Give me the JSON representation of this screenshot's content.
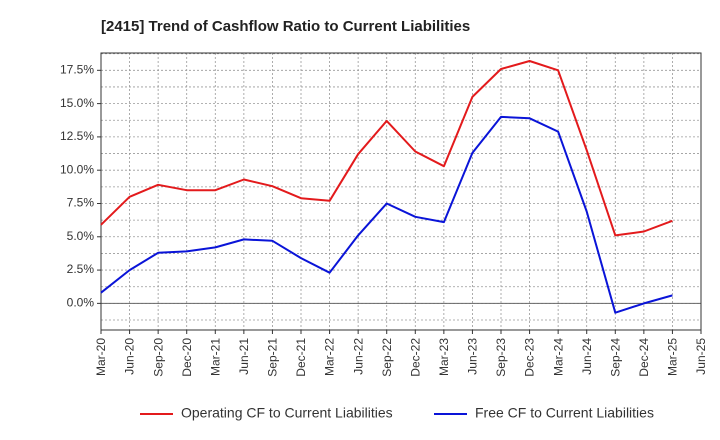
{
  "chart_data": {
    "type": "line",
    "title": "[2415]  Trend of Cashflow Ratio to Current Liabilities",
    "xlabel": "",
    "ylabel": "",
    "categories": [
      "Mar-20",
      "Jun-20",
      "Sep-20",
      "Dec-20",
      "Mar-21",
      "Jun-21",
      "Sep-21",
      "Dec-21",
      "Mar-22",
      "Jun-22",
      "Sep-22",
      "Dec-22",
      "Mar-23",
      "Jun-23",
      "Sep-23",
      "Dec-23",
      "Mar-24",
      "Jun-24",
      "Sep-24",
      "Dec-24",
      "Mar-25",
      "Jun-25"
    ],
    "y_ticks": [
      "0.0%",
      "2.5%",
      "5.0%",
      "7.5%",
      "10.0%",
      "12.5%",
      "15.0%",
      "17.5%"
    ],
    "ylim": [
      -2.0,
      18.8
    ],
    "grid": true,
    "legend_position": "bottom",
    "series": [
      {
        "name": "Operating CF to Current Liabilities",
        "color": "#e31a1c",
        "values": [
          5.9,
          8.0,
          8.9,
          8.5,
          8.5,
          9.3,
          8.8,
          7.9,
          7.7,
          11.2,
          13.7,
          11.4,
          10.3,
          15.5,
          17.6,
          18.2,
          17.5,
          11.5,
          5.1,
          5.4,
          6.2,
          null
        ]
      },
      {
        "name": "Free CF to Current Liabilities",
        "color": "#0a14d8",
        "values": [
          0.8,
          2.5,
          3.8,
          3.9,
          4.2,
          4.8,
          4.7,
          3.4,
          2.3,
          5.1,
          7.5,
          6.5,
          6.1,
          11.3,
          14.0,
          13.9,
          12.9,
          6.9,
          -0.7,
          0.0,
          0.6,
          null
        ]
      }
    ]
  }
}
